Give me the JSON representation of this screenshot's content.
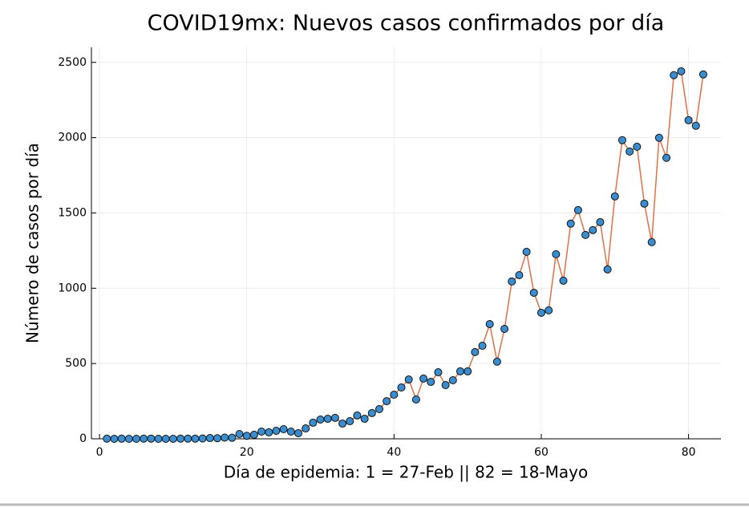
{
  "chart_data": {
    "type": "line",
    "title": "COVID19mx: Nuevos casos confirmados por día",
    "x_label": "Día de epidemia: 1 = 27-Feb || 82 = 18-Mayo",
    "y_label": "Número de casos por día",
    "x": [
      1,
      2,
      3,
      4,
      5,
      6,
      7,
      8,
      9,
      10,
      11,
      12,
      13,
      14,
      15,
      16,
      17,
      18,
      19,
      20,
      21,
      22,
      23,
      24,
      25,
      26,
      27,
      28,
      29,
      30,
      31,
      32,
      33,
      34,
      35,
      36,
      37,
      38,
      39,
      40,
      41,
      42,
      43,
      44,
      45,
      46,
      47,
      48,
      49,
      50,
      51,
      52,
      53,
      54,
      55,
      56,
      57,
      58,
      59,
      60,
      61,
      62,
      63,
      64,
      65,
      66,
      67,
      68,
      69,
      70,
      71,
      72,
      73,
      74,
      75,
      76,
      77,
      78,
      79,
      80,
      81,
      82
    ],
    "series": [
      {
        "name": "Nuevos casos",
        "color": "#e26f46",
        "marker_color": "#3a8ed0",
        "values": [
          1,
          0,
          1,
          0,
          0,
          1,
          1,
          0,
          0,
          0,
          1,
          1,
          1,
          2,
          5,
          4,
          8,
          7,
          32,
          20,
          27,
          48,
          43,
          53,
          64,
          48,
          37,
          69,
          107,
          128,
          133,
          139,
          101,
          117,
          155,
          133,
          171,
          197,
          250,
          293,
          341,
          394,
          261,
          400,
          378,
          442,
          357,
          389,
          448,
          448,
          576,
          618,
          762,
          512,
          730,
          1045,
          1087,
          1242,
          970,
          837,
          853,
          1226,
          1050,
          1429,
          1519,
          1354,
          1386,
          1439,
          1125,
          1610,
          1983,
          1908,
          1940,
          1562,
          1306,
          1999,
          1866,
          2415,
          2441,
          2116,
          2079,
          2420
        ]
      }
    ],
    "xlim": [
      -1.1,
      84.4
    ],
    "ylim": [
      0,
      2600
    ],
    "xticks": [
      0,
      20,
      40,
      60,
      80
    ],
    "yticks": [
      0,
      500,
      1000,
      1500,
      2000,
      2500
    ],
    "grid": true
  }
}
